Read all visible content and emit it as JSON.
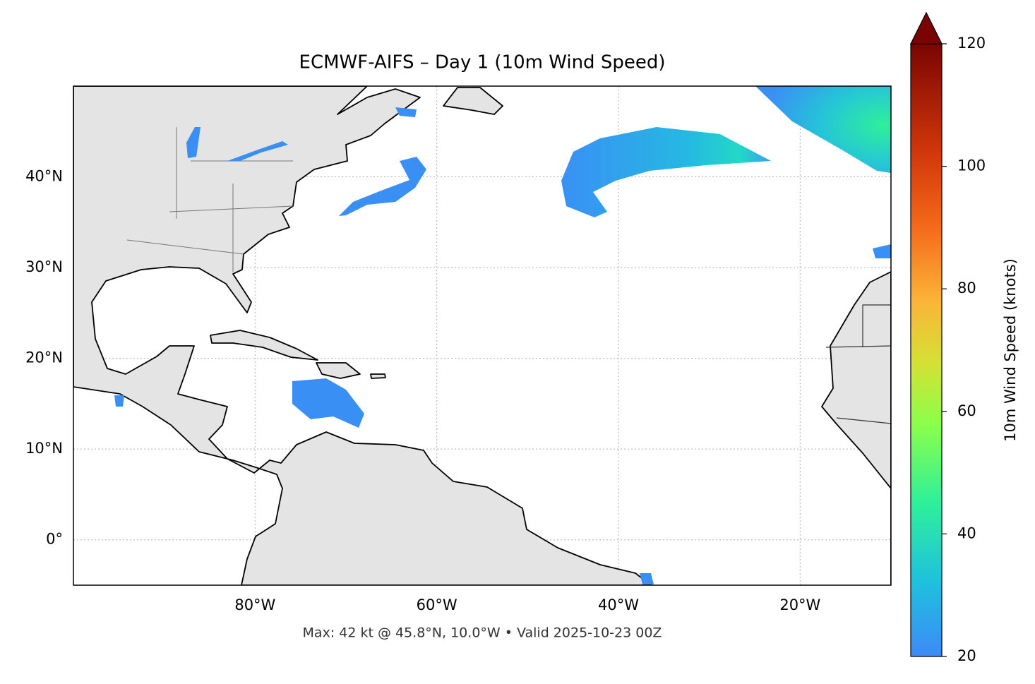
{
  "chart_data": {
    "type": "map",
    "title": "ECMWF-AIFS – Day 1 (10m Wind Speed)",
    "footer": "Max: 42 kt @ 45.8°N, 10.0°W • Valid 2025-10-23 00Z",
    "xlim": [
      -100,
      -10
    ],
    "ylim": [
      -5,
      50
    ],
    "xticks": [
      {
        "value": -80,
        "label": "80°W"
      },
      {
        "value": -60,
        "label": "60°W"
      },
      {
        "value": -40,
        "label": "40°W"
      },
      {
        "value": -20,
        "label": "20°W"
      }
    ],
    "yticks": [
      {
        "value": 0,
        "label": "0°"
      },
      {
        "value": 10,
        "label": "10°N"
      },
      {
        "value": 20,
        "label": "20°N"
      },
      {
        "value": 30,
        "label": "30°N"
      },
      {
        "value": 40,
        "label": "40°N"
      }
    ],
    "grid": true,
    "colorbar": {
      "label": "10m Wind Speed (knots)",
      "lim": [
        20,
        120
      ],
      "ticks": [
        20,
        40,
        60,
        80,
        100,
        120
      ],
      "extend": "max"
    }
  }
}
